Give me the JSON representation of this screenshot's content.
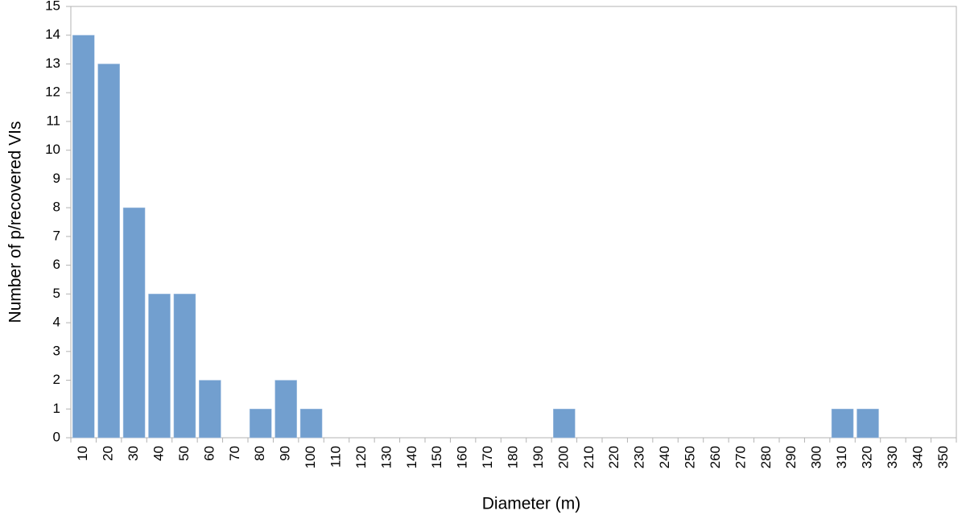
{
  "chart_data": {
    "type": "bar",
    "x_label": "Diameter (m)",
    "y_label": "Number of p/recovered VIs",
    "categories": [
      "10",
      "20",
      "30",
      "40",
      "50",
      "60",
      "70",
      "80",
      "90",
      "100",
      "110",
      "120",
      "130",
      "140",
      "150",
      "160",
      "170",
      "180",
      "190",
      "200",
      "210",
      "220",
      "230",
      "240",
      "250",
      "260",
      "270",
      "280",
      "290",
      "300",
      "310",
      "320",
      "330",
      "340",
      "350"
    ],
    "values": [
      14,
      13,
      8,
      5,
      5,
      2,
      0,
      1,
      2,
      1,
      0,
      0,
      0,
      0,
      0,
      0,
      0,
      0,
      0,
      1,
      0,
      0,
      0,
      0,
      0,
      0,
      0,
      0,
      0,
      0,
      1,
      1,
      0,
      0,
      0
    ],
    "color": "#729fcf",
    "ylim": [
      0,
      15
    ],
    "yticks": [
      0,
      1,
      2,
      3,
      4,
      5,
      6,
      7,
      8,
      9,
      10,
      11,
      12,
      13,
      14,
      15
    ],
    "grid": false
  }
}
